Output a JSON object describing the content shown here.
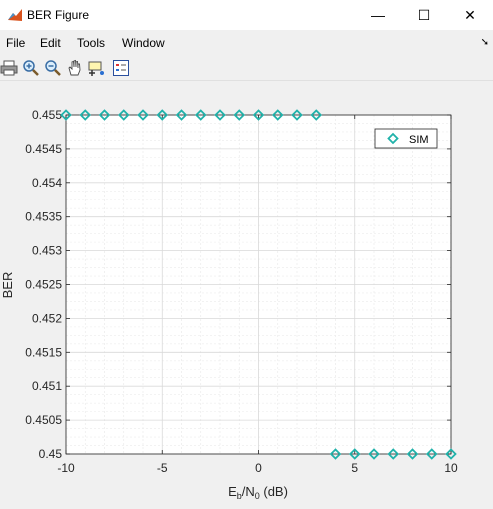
{
  "window": {
    "title": "BER Figure",
    "minimize": "—",
    "maximize": "☐",
    "close": "✕"
  },
  "menu": {
    "items": [
      "File",
      "Edit",
      "Tools",
      "Window"
    ],
    "dock_arrow": "➘"
  },
  "toolbar": {
    "tools": [
      "print-icon",
      "zoom-in-icon",
      "zoom-out-icon",
      "pan-icon",
      "data-cursor-icon",
      "legend-icon"
    ]
  },
  "chart_data": {
    "type": "scatter",
    "title": "",
    "xlabel": {
      "main": "E",
      "sub1": "b",
      "mid": "/N",
      "sub2": "0",
      "tail": " (dB)"
    },
    "ylabel": "BER",
    "xlim": [
      -10,
      10
    ],
    "ylim": [
      0.45,
      0.455
    ],
    "xticks": [
      -10,
      -5,
      0,
      5,
      10
    ],
    "yticks": [
      "0.45",
      "0.4505",
      "0.451",
      "0.4515",
      "0.452",
      "0.4525",
      "0.453",
      "0.4535",
      "0.454",
      "0.4545",
      "0.455"
    ],
    "grid": true,
    "minor_grid": true,
    "legend_position": "top-right",
    "series": [
      {
        "name": "SIM",
        "color": "#20b2aa",
        "marker": "diamond",
        "x": [
          -10,
          -9,
          -8,
          -7,
          -6,
          -5,
          -4,
          -3,
          -2,
          -1,
          0,
          1,
          2,
          3,
          4,
          5,
          6,
          7,
          8,
          9,
          10
        ],
        "y": [
          0.455,
          0.455,
          0.455,
          0.455,
          0.455,
          0.455,
          0.455,
          0.455,
          0.455,
          0.455,
          0.455,
          0.455,
          0.455,
          0.455,
          0.45,
          0.45,
          0.45,
          0.45,
          0.45,
          0.45,
          0.45
        ]
      }
    ]
  }
}
